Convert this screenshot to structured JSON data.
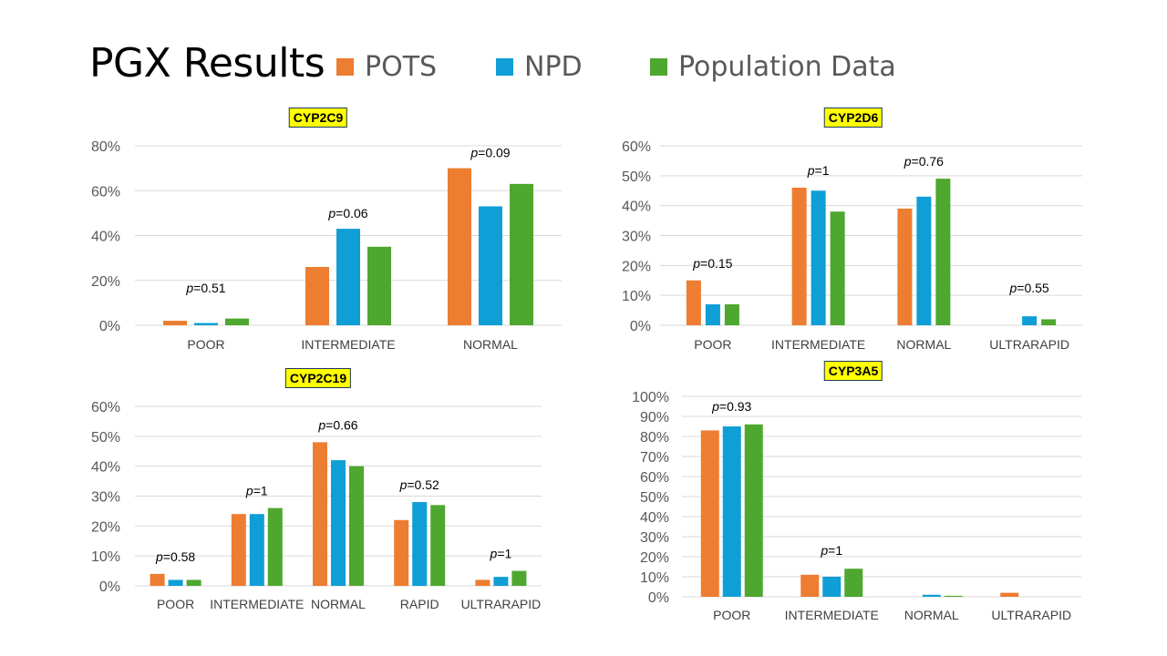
{
  "page": {
    "title": "PGX Results",
    "legend": [
      {
        "name": "POTS",
        "color": "#ED7D31"
      },
      {
        "name": "NPD",
        "color": "#0F9ED5"
      },
      {
        "name": "Population Data",
        "color": "#4EA72E"
      }
    ]
  },
  "chart_data": [
    {
      "type": "bar",
      "title": "CYP2C9",
      "categories": [
        "POOR",
        "INTERMEDIATE",
        "NORMAL"
      ],
      "series": [
        {
          "name": "POTS",
          "values": [
            0.02,
            0.26,
            0.7
          ]
        },
        {
          "name": "NPD",
          "values": [
            0.01,
            0.43,
            0.53
          ]
        },
        {
          "name": "Population Data",
          "values": [
            0.03,
            0.35,
            0.63
          ]
        }
      ],
      "annotations": [
        "=0.51",
        "=0.06",
        "=0.09"
      ],
      "ylim": [
        0,
        0.8
      ],
      "yticks": [
        0,
        0.2,
        0.4,
        0.6,
        0.8
      ],
      "ytick_labels": [
        "0%",
        "20%",
        "40%",
        "60%",
        "80%"
      ],
      "grid": true
    },
    {
      "type": "bar",
      "title": "CYP2D6",
      "categories": [
        "POOR",
        "INTERMEDIATE",
        "NORMAL",
        "ULTRARAPID"
      ],
      "series": [
        {
          "name": "POTS",
          "values": [
            0.15,
            0.46,
            0.39,
            0.0
          ]
        },
        {
          "name": "NPD",
          "values": [
            0.07,
            0.45,
            0.43,
            0.03
          ]
        },
        {
          "name": "Population Data",
          "values": [
            0.07,
            0.38,
            0.49,
            0.02
          ]
        }
      ],
      "annotations": [
        "=0.15",
        "=1",
        "=0.76",
        "=0.55"
      ],
      "ylim": [
        0,
        0.6
      ],
      "yticks": [
        0,
        0.1,
        0.2,
        0.3,
        0.4,
        0.5,
        0.6
      ],
      "ytick_labels": [
        "0%",
        "10%",
        "20%",
        "30%",
        "40%",
        "50%",
        "60%"
      ],
      "grid": true
    },
    {
      "type": "bar",
      "title": "CYP2C19",
      "categories": [
        "POOR",
        "INTERMEDIATE",
        "NORMAL",
        "RAPID",
        "ULTRARAPID"
      ],
      "series": [
        {
          "name": "POTS",
          "values": [
            0.04,
            0.24,
            0.48,
            0.22,
            0.02
          ]
        },
        {
          "name": "NPD",
          "values": [
            0.02,
            0.24,
            0.42,
            0.28,
            0.03
          ]
        },
        {
          "name": "Population Data",
          "values": [
            0.02,
            0.26,
            0.4,
            0.27,
            0.05
          ]
        }
      ],
      "annotations": [
        "=0.58",
        "=1",
        "=0.66",
        "=0.52",
        "=1"
      ],
      "ylim": [
        0,
        0.6
      ],
      "yticks": [
        0,
        0.1,
        0.2,
        0.3,
        0.4,
        0.5,
        0.6
      ],
      "ytick_labels": [
        "0%",
        "10%",
        "20%",
        "30%",
        "40%",
        "50%",
        "60%"
      ],
      "grid": true
    },
    {
      "type": "bar",
      "title": "CYP3A5",
      "categories": [
        "POOR",
        "INTERMEDIATE",
        "NORMAL",
        "ULTRARAPID"
      ],
      "series": [
        {
          "name": "POTS",
          "values": [
            0.83,
            0.11,
            0.0,
            0.02
          ]
        },
        {
          "name": "NPD",
          "values": [
            0.85,
            0.1,
            0.01,
            0.0
          ]
        },
        {
          "name": "Population Data",
          "values": [
            0.86,
            0.14,
            0.005,
            0.0
          ]
        }
      ],
      "annotations": [
        "=0.93",
        "=1",
        "",
        ""
      ],
      "ylim": [
        0,
        1.0
      ],
      "yticks": [
        0,
        0.1,
        0.2,
        0.3,
        0.4,
        0.5,
        0.6,
        0.7,
        0.8,
        0.9,
        1.0
      ],
      "ytick_labels": [
        "0%",
        "10%",
        "20%",
        "30%",
        "40%",
        "50%",
        "60%",
        "70%",
        "80%",
        "90%",
        "100%"
      ],
      "grid": true
    }
  ]
}
